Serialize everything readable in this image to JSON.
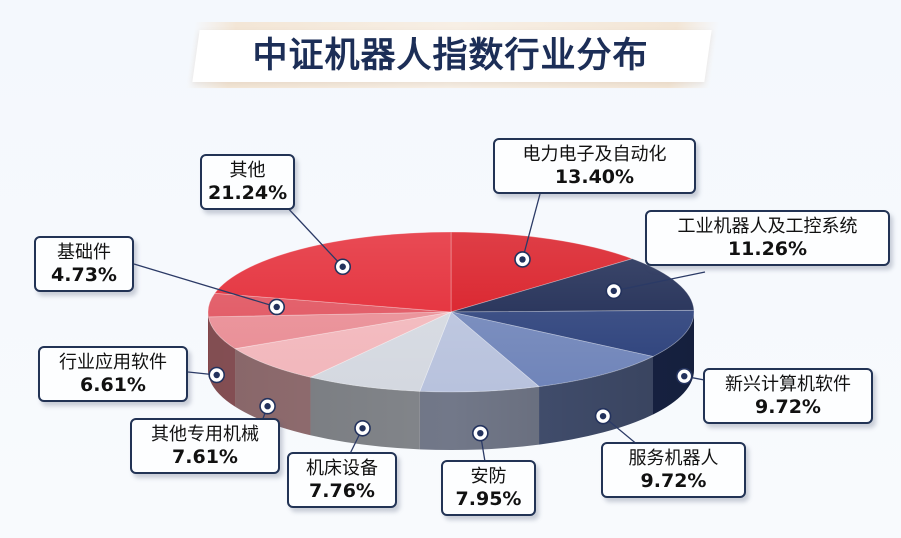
{
  "title": "中证机器人指数行业分布",
  "chart_data": {
    "type": "pie",
    "title": "中证机器人指数行业分布",
    "unit": "%",
    "legend": "callouts",
    "slices": [
      {
        "name": "电力电子及自动化",
        "value": 13.4,
        "label": "13.40%",
        "color": "#d8141e"
      },
      {
        "name": "工业机器人及工控系统",
        "value": 11.26,
        "label": "11.26%",
        "color": "#17244e"
      },
      {
        "name": "新兴计算机软件",
        "value": 9.72,
        "label": "9.72%",
        "color": "#2a3f7a"
      },
      {
        "name": "服务机器人",
        "value": 9.72,
        "label": "9.72%",
        "color": "#6f84b9"
      },
      {
        "name": "安防",
        "value": 7.95,
        "label": "7.95%",
        "color": "#b8c2dd"
      },
      {
        "name": "机床设备",
        "value": 7.76,
        "label": "7.76%",
        "color": "#d4d8e0"
      },
      {
        "name": "其他专用机械",
        "value": 7.61,
        "label": "7.61%",
        "color": "#f2b6bb"
      },
      {
        "name": "行业应用软件",
        "value": 6.61,
        "label": "6.61%",
        "color": "#e98b93"
      },
      {
        "name": "基础件",
        "value": 4.73,
        "label": "4.73%",
        "color": "#e0505c"
      },
      {
        "name": "其他",
        "value": 21.24,
        "label": "21.24%",
        "color": "#e3232f"
      }
    ]
  }
}
